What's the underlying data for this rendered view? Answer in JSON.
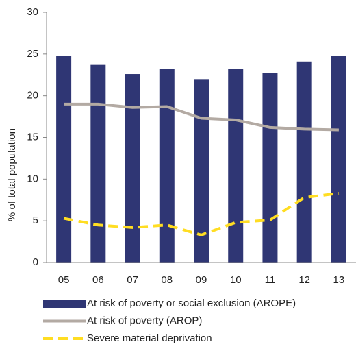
{
  "chart_data": {
    "type": "bar",
    "y_label": "% of total population",
    "categories": [
      "05",
      "06",
      "07",
      "08",
      "09",
      "10",
      "11",
      "12",
      "13"
    ],
    "series": [
      {
        "name": "At risk of poverty or social exclusion (AROPE)",
        "type": "bar",
        "color": "#2f3674",
        "values": [
          24.8,
          23.7,
          22.6,
          23.2,
          22.0,
          23.2,
          22.7,
          24.1,
          24.8
        ]
      },
      {
        "name": "At risk of poverty (AROP)",
        "type": "line",
        "color": "#b3aaa3",
        "dashed": false,
        "values": [
          19.0,
          19.0,
          18.6,
          18.7,
          17.3,
          17.1,
          16.2,
          16.0,
          15.9
        ]
      },
      {
        "name": "Severe material deprivation",
        "type": "line",
        "color": "#ffdd22",
        "dashed": true,
        "values": [
          5.3,
          4.5,
          4.2,
          4.5,
          3.3,
          4.8,
          5.1,
          7.8,
          8.3
        ]
      }
    ],
    "ylim": [
      0,
      30
    ],
    "yticks": [
      0,
      5,
      10,
      15,
      20,
      25,
      30
    ],
    "grid": false
  }
}
